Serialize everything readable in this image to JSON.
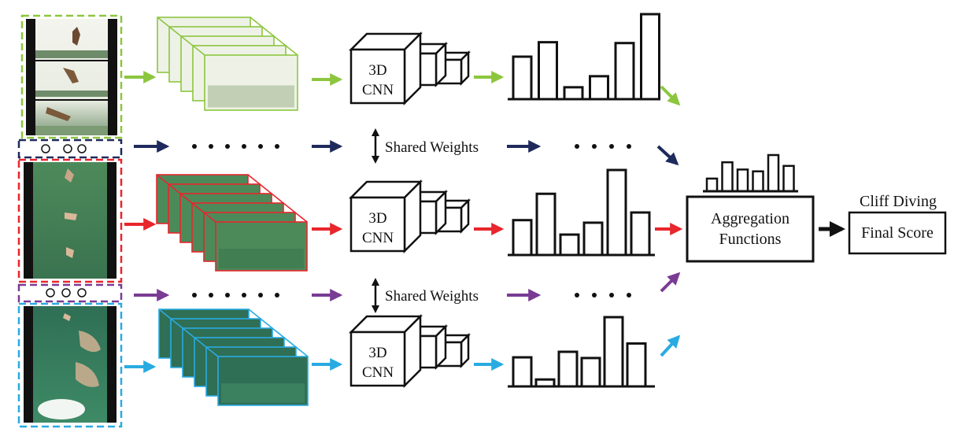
{
  "colors": {
    "green": "#8cc63f",
    "navy": "#1f2a5c",
    "red": "#e8262b",
    "purple": "#7a3b94",
    "blue": "#29abe2",
    "black": "#111111",
    "water_green": "#3e7d52",
    "water_blue": "#2f7f6a"
  },
  "labels": {
    "cnn_line1": "3D",
    "cnn_line2": "CNN",
    "shared_weights": "Shared Weights",
    "aggregation_line1": "Aggregation",
    "aggregation_line2": "Functions",
    "output_title": "Cliff Diving",
    "final_score": "Final Score"
  },
  "histograms": {
    "top": [
      0.5,
      0.67,
      0.14,
      0.27,
      0.66,
      1.0
    ],
    "middle": [
      0.41,
      0.72,
      0.24,
      0.38,
      1.0,
      0.5
    ],
    "bottom": [
      0.42,
      0.1,
      0.5,
      0.41,
      1.0,
      0.62
    ],
    "aggregated": [
      0.35,
      0.8,
      0.6,
      0.55,
      1.0,
      0.7
    ]
  },
  "icons": [
    "film-strip-icon",
    "clip-stack-icon",
    "cnn-cube-icon",
    "histogram-icon",
    "double-arrow-icon",
    "ellipsis-dots-icon"
  ]
}
